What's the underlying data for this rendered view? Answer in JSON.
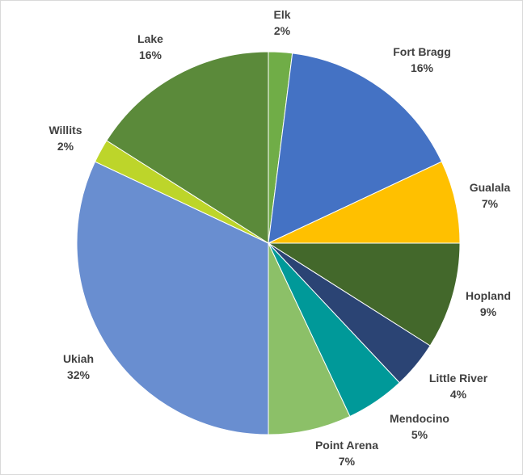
{
  "chart_data": {
    "type": "pie",
    "title": "",
    "start": "12 o'clock",
    "direction": "clockwise",
    "slices": [
      {
        "label": "Elk",
        "percent_label": "2%",
        "value": 2,
        "color": "#70AD47"
      },
      {
        "label": "Fort Bragg",
        "percent_label": "16%",
        "value": 16,
        "color": "#4472C4"
      },
      {
        "label": "Gualala",
        "percent_label": "7%",
        "value": 7,
        "color": "#FFC000"
      },
      {
        "label": "Hopland",
        "percent_label": "9%",
        "value": 9,
        "color": "#43682B"
      },
      {
        "label": "Little River",
        "percent_label": "4%",
        "value": 4,
        "color": "#2B4474"
      },
      {
        "label": "Mendocino",
        "percent_label": "5%",
        "value": 5,
        "color": "#009999"
      },
      {
        "label": "Point Arena",
        "percent_label": "7%",
        "value": 7,
        "color": "#8CC068"
      },
      {
        "label": "Ukiah",
        "percent_label": "32%",
        "value": 32,
        "color": "#698ED0"
      },
      {
        "label": "Willits",
        "percent_label": "2%",
        "value": 2,
        "color": "#BDD52A"
      },
      {
        "label": "Lake",
        "percent_label": "16%",
        "value": 16,
        "color": "#5B8A3A"
      }
    ]
  }
}
